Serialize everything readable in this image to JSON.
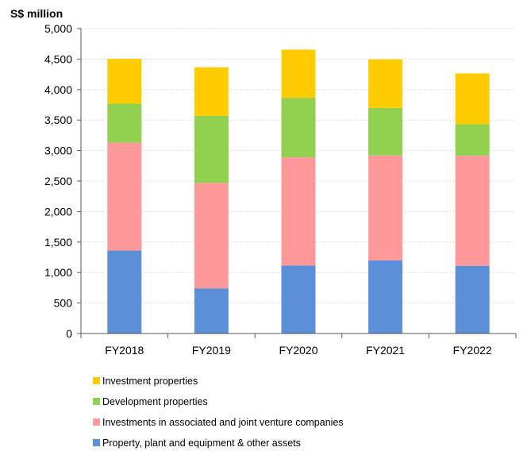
{
  "chart_data": {
    "type": "bar",
    "stacked": true,
    "unit_label": "S$ million",
    "title": "",
    "xlabel": "",
    "ylabel": "",
    "ylim": [
      0,
      5000
    ],
    "y_ticks": [
      "0",
      "500",
      "1,000",
      "1,500",
      "2,000",
      "2,500",
      "3,000",
      "3,500",
      "4,000",
      "4,500",
      "5,000"
    ],
    "y_tick_values": [
      0,
      500,
      1000,
      1500,
      2000,
      2500,
      3000,
      3500,
      4000,
      4500,
      5000
    ],
    "grid": true,
    "legend_position": "bottom",
    "categories": [
      "FY2018",
      "FY2019",
      "FY2020",
      "FY2021",
      "FY2022"
    ],
    "series": [
      {
        "name": "Property, plant and equipment & other assets",
        "color": "#5B8FD9",
        "values": [
          1360,
          740,
          1115,
          1200,
          1110
        ]
      },
      {
        "name": "Investments in associated and joint venture companies",
        "color": "#FF9999",
        "values": [
          1770,
          1730,
          1775,
          1720,
          1805
        ]
      },
      {
        "name": "Development properties",
        "color": "#92D050",
        "values": [
          640,
          1100,
          975,
          780,
          515
        ]
      },
      {
        "name": "Investment properties",
        "color": "#FFCC00",
        "values": [
          735,
          795,
          790,
          795,
          835
        ]
      }
    ],
    "legend_order": [
      3,
      2,
      1,
      0
    ]
  }
}
